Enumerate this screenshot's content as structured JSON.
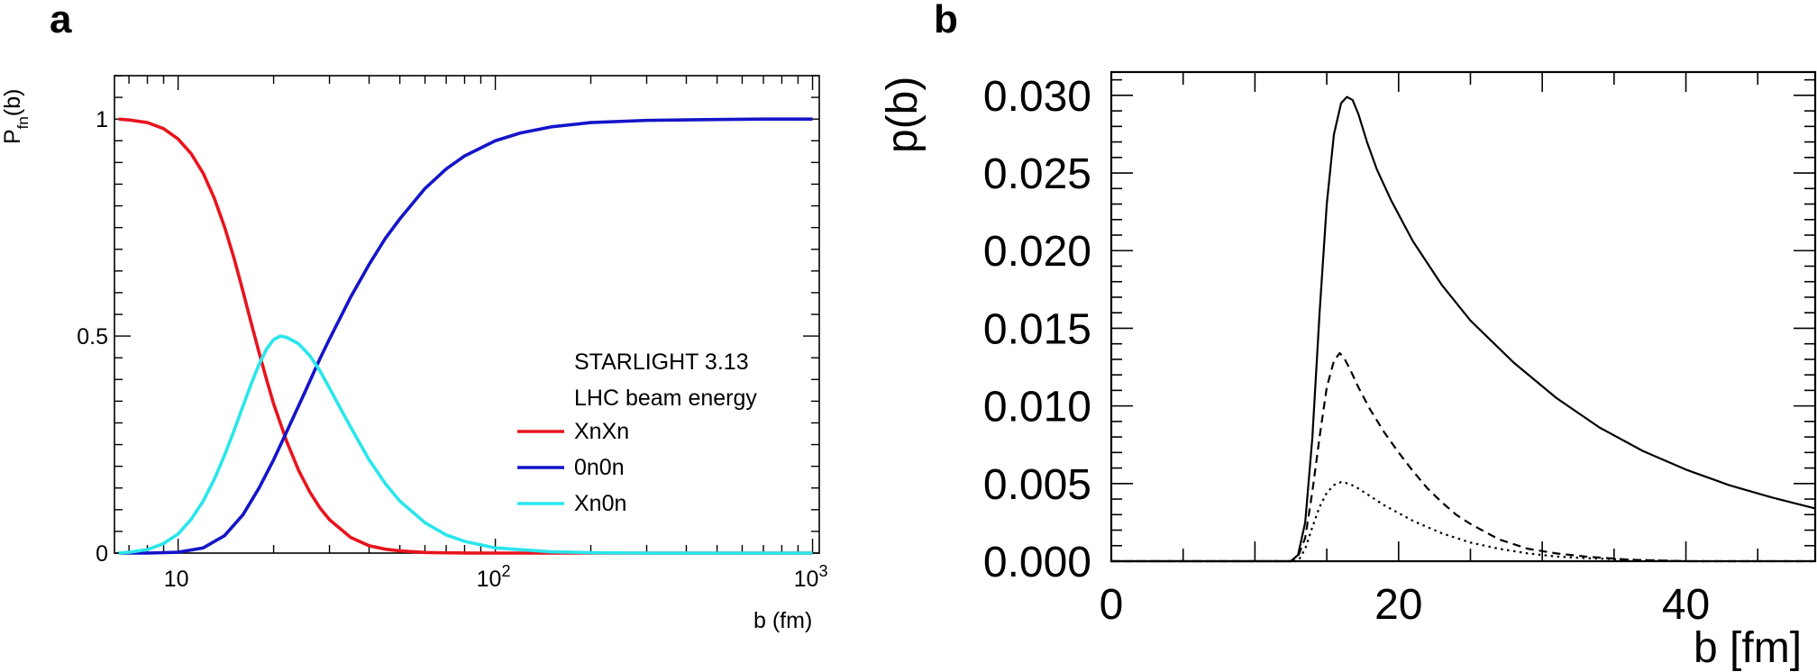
{
  "panels": {
    "a_letter": "a",
    "b_letter": "b"
  },
  "chart_data": [
    {
      "panel": "a",
      "type": "line",
      "xscale": "log",
      "xlim": [
        6.3,
        1050
      ],
      "ylim": [
        0,
        1.1
      ],
      "xlabel": "b (fm)",
      "ylabel": "P",
      "ylabel_sub": "fn",
      "ylabel_suffix": "(b)",
      "xticks": [
        {
          "value": 10,
          "base": "10",
          "exp": ""
        },
        {
          "value": 100,
          "base": "10",
          "exp": "2"
        },
        {
          "value": 1000,
          "base": "10",
          "exp": "3"
        }
      ],
      "yticks": [
        {
          "value": 0,
          "label": "0"
        },
        {
          "value": 0.5,
          "label": "0.5"
        },
        {
          "value": 1,
          "label": "1"
        }
      ],
      "legend_title": [
        "STARLIGHT 3.13",
        "LHC beam energy"
      ],
      "legend_position": "right",
      "series": [
        {
          "name": "XnXn",
          "color": "#e8141e",
          "x": [
            6.5,
            7,
            8,
            9,
            10,
            11,
            12,
            13,
            14,
            15,
            16,
            17,
            18,
            19,
            20,
            22,
            24,
            26,
            28,
            30,
            35,
            40,
            45,
            50,
            60,
            70,
            80,
            100,
            150,
            200,
            300,
            500,
            700,
            1000
          ],
          "y": [
            1.0,
            0.998,
            0.992,
            0.978,
            0.954,
            0.92,
            0.875,
            0.818,
            0.752,
            0.68,
            0.604,
            0.53,
            0.462,
            0.4,
            0.344,
            0.257,
            0.19,
            0.141,
            0.104,
            0.077,
            0.036,
            0.017,
            0.009,
            0.005,
            0.0015,
            0.0005,
            0.0002,
            0.0,
            0.0,
            0.0,
            0.0,
            0.0,
            0.0,
            0.0
          ]
        },
        {
          "name": "0n0n",
          "color": "#1414c8",
          "x": [
            6.5,
            8,
            10,
            12,
            14,
            16,
            18,
            20,
            22,
            25,
            28,
            30,
            35,
            40,
            45,
            50,
            60,
            70,
            80,
            100,
            120,
            150,
            200,
            300,
            500,
            700,
            1000
          ],
          "y": [
            0.0,
            0.0,
            0.002,
            0.012,
            0.04,
            0.088,
            0.15,
            0.215,
            0.28,
            0.368,
            0.448,
            0.493,
            0.59,
            0.665,
            0.725,
            0.77,
            0.84,
            0.885,
            0.915,
            0.95,
            0.968,
            0.982,
            0.992,
            0.997,
            0.999,
            1.0,
            1.0
          ]
        },
        {
          "name": "Xn0n",
          "color": "#28e6ec",
          "x": [
            6.5,
            7,
            8,
            9,
            10,
            11,
            12,
            13,
            14,
            15,
            16,
            17,
            18,
            19,
            20,
            21,
            22,
            24,
            26,
            28,
            30,
            35,
            40,
            45,
            50,
            60,
            70,
            80,
            100,
            150,
            200,
            300,
            500,
            700,
            1000
          ],
          "y": [
            0.0,
            0.002,
            0.008,
            0.022,
            0.044,
            0.078,
            0.12,
            0.17,
            0.225,
            0.282,
            0.338,
            0.39,
            0.435,
            0.47,
            0.492,
            0.5,
            0.497,
            0.482,
            0.455,
            0.42,
            0.38,
            0.29,
            0.215,
            0.16,
            0.12,
            0.07,
            0.042,
            0.027,
            0.012,
            0.003,
            0.001,
            0.0,
            0.0,
            0.0,
            0.0
          ]
        }
      ]
    },
    {
      "panel": "b",
      "type": "line",
      "xlim": [
        0,
        49
      ],
      "ylim": [
        0,
        0.0315
      ],
      "xlabel": "b [fm]",
      "ylabel": "p(b)",
      "xticks": [
        {
          "value": 0,
          "label": "0"
        },
        {
          "value": 20,
          "label": "20"
        },
        {
          "value": 40,
          "label": "40"
        }
      ],
      "yticks": [
        {
          "value": 0.0,
          "label": "0.000"
        },
        {
          "value": 0.005,
          "label": "0.005"
        },
        {
          "value": 0.01,
          "label": "0.010"
        },
        {
          "value": 0.015,
          "label": "0.015"
        },
        {
          "value": 0.02,
          "label": "0.020"
        },
        {
          "value": 0.025,
          "label": "0.025"
        },
        {
          "value": 0.03,
          "label": "0.030"
        }
      ],
      "series": [
        {
          "style": "solid",
          "color": "#000000",
          "x": [
            0,
            12.5,
            13.0,
            13.5,
            14.0,
            14.5,
            15.0,
            15.5,
            16.0,
            16.4,
            16.8,
            17.2,
            17.8,
            18.5,
            19.5,
            21,
            23,
            25,
            28,
            31,
            34,
            37,
            40,
            43,
            46,
            49
          ],
          "y": [
            0,
            0,
            0.0004,
            0.0025,
            0.008,
            0.016,
            0.023,
            0.0275,
            0.0295,
            0.0299,
            0.0297,
            0.0288,
            0.027,
            0.0252,
            0.0232,
            0.0206,
            0.0178,
            0.0155,
            0.0128,
            0.0105,
            0.0086,
            0.0071,
            0.0059,
            0.0049,
            0.0041,
            0.0034
          ]
        },
        {
          "style": "dashed",
          "color": "#000000",
          "x": [
            0,
            12.5,
            13.0,
            13.5,
            14.0,
            14.5,
            15.0,
            15.5,
            15.9,
            16.2,
            16.6,
            17.2,
            18,
            19,
            20,
            21,
            22,
            23,
            24,
            25,
            27,
            29,
            31,
            33,
            36,
            40,
            45,
            49
          ],
          "y": [
            0,
            0,
            0.0003,
            0.0015,
            0.0045,
            0.008,
            0.0112,
            0.0129,
            0.0134,
            0.0131,
            0.0124,
            0.0112,
            0.0098,
            0.0083,
            0.007,
            0.0058,
            0.0047,
            0.0038,
            0.003,
            0.0024,
            0.0014,
            0.0008,
            0.0005,
            0.0003,
            0.0001,
            0.0,
            0.0,
            0.0
          ]
        },
        {
          "style": "dotted",
          "color": "#000000",
          "x": [
            0,
            13.0,
            13.5,
            14.0,
            14.5,
            15.0,
            15.5,
            16.0,
            16.5,
            17.0,
            17.5,
            18,
            19,
            20,
            21,
            22,
            23,
            24,
            25,
            27,
            29,
            31,
            33,
            36,
            40,
            45,
            49
          ],
          "y": [
            0,
            0,
            0.0008,
            0.0022,
            0.0035,
            0.0044,
            0.0049,
            0.0051,
            0.005,
            0.0048,
            0.0045,
            0.0042,
            0.0036,
            0.0031,
            0.0026,
            0.0022,
            0.0018,
            0.0015,
            0.0012,
            0.0008,
            0.0005,
            0.0003,
            0.0002,
            0.0001,
            0.0,
            0.0,
            0.0
          ]
        }
      ]
    }
  ]
}
